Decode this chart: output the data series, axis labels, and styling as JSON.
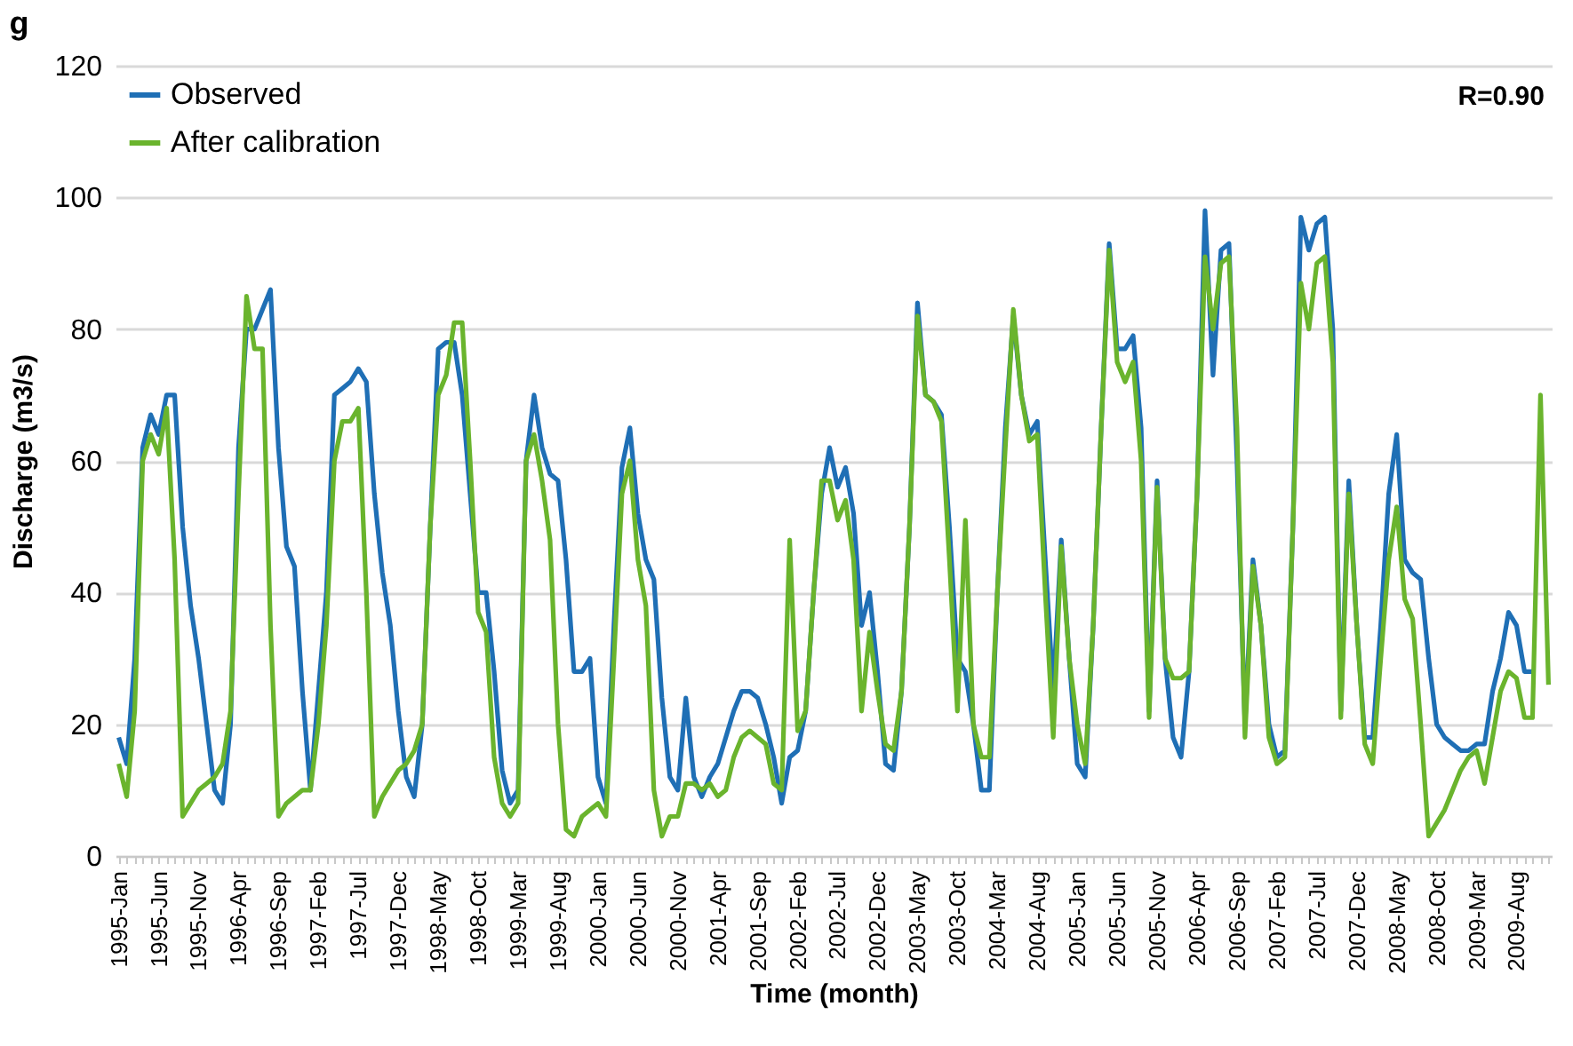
{
  "chart_data": {
    "type": "line",
    "title": "g",
    "xlabel": "Time (month)",
    "ylabel": "Discharge (m3/s)",
    "annotations": [
      "R=0.90"
    ],
    "categories": [
      "1995-Jan",
      null,
      null,
      null,
      null,
      "1995-Jun",
      null,
      null,
      null,
      null,
      "1995-Nov",
      null,
      null,
      null,
      null,
      "1996-Apr",
      null,
      null,
      null,
      null,
      "1996-Sep",
      null,
      null,
      null,
      null,
      "1997-Feb",
      null,
      null,
      null,
      null,
      "1997-Jul",
      null,
      null,
      null,
      null,
      "1997-Dec",
      null,
      null,
      null,
      null,
      "1998-May",
      null,
      null,
      null,
      null,
      "1998-Oct",
      null,
      null,
      null,
      null,
      "1999-Mar",
      null,
      null,
      null,
      null,
      "1999-Aug",
      null,
      null,
      null,
      null,
      "2000-Jan",
      null,
      null,
      null,
      null,
      "2000-Jun",
      null,
      null,
      null,
      null,
      "2000-Nov",
      null,
      null,
      null,
      null,
      "2001-Apr",
      null,
      null,
      null,
      null,
      "2001-Sep",
      null,
      null,
      null,
      null,
      "2002-Feb",
      null,
      null,
      null,
      null,
      "2002-Jul",
      null,
      null,
      null,
      null,
      "2002-Dec",
      null,
      null,
      null,
      null,
      "2003-May",
      null,
      null,
      null,
      null,
      "2003-Oct",
      null,
      null,
      null,
      null,
      "2004-Mar",
      null,
      null,
      null,
      null,
      "2004-Aug",
      null,
      null,
      null,
      null,
      "2005-Jan",
      null,
      null,
      null,
      null,
      "2005-Jun",
      null,
      null,
      null,
      null,
      "2005-Nov",
      null,
      null,
      null,
      null,
      "2006-Apr",
      null,
      null,
      null,
      null,
      "2006-Sep",
      null,
      null,
      null,
      null,
      "2007-Feb",
      null,
      null,
      null,
      null,
      "2007-Jul",
      null,
      null,
      null,
      null,
      "2007-Dec",
      null,
      null,
      null,
      null,
      "2008-May",
      null,
      null,
      null,
      null,
      "2008-Oct",
      null,
      null,
      null,
      null,
      "2009-Mar",
      null,
      null,
      null,
      null,
      "2009-Aug",
      null,
      null,
      null,
      null
    ],
    "series": [
      {
        "name": "Observed",
        "color": "#1f6fb5",
        "values": [
          18,
          14,
          30,
          62,
          67,
          64,
          70,
          70,
          50,
          38,
          30,
          20,
          10,
          8,
          20,
          62,
          80,
          80,
          83,
          86,
          62,
          47,
          44,
          25,
          10,
          25,
          40,
          70,
          71,
          72,
          74,
          72,
          55,
          43,
          35,
          22,
          12,
          9,
          20,
          50,
          77,
          78,
          78,
          70,
          55,
          40,
          40,
          28,
          13,
          8,
          10,
          60,
          70,
          62,
          58,
          57,
          45,
          28,
          28,
          30,
          12,
          8,
          35,
          59,
          65,
          52,
          45,
          42,
          24,
          12,
          10,
          24,
          12,
          9,
          12,
          14,
          18,
          22,
          25,
          25,
          24,
          20,
          15,
          8,
          15,
          16,
          22,
          40,
          55,
          62,
          56,
          59,
          52,
          35,
          40,
          28,
          14,
          13,
          25,
          50,
          84,
          70,
          69,
          67,
          50,
          30,
          28,
          20,
          10,
          10,
          40,
          65,
          82,
          70,
          64,
          66,
          45,
          25,
          48,
          30,
          14,
          12,
          35,
          65,
          93,
          77,
          77,
          79,
          65,
          22,
          57,
          30,
          18,
          15,
          28,
          55,
          98,
          73,
          92,
          93,
          60,
          20,
          45,
          35,
          20,
          15,
          16,
          50,
          97,
          92,
          96,
          97,
          80,
          22,
          57,
          35,
          18,
          18,
          35,
          55,
          64,
          45,
          43,
          42,
          30,
          20,
          18,
          17,
          16,
          16,
          17,
          17,
          25,
          30,
          37,
          35,
          28,
          28,
          null,
          null
        ]
      },
      {
        "name": "After calibration",
        "color": "#6ab42d",
        "values": [
          14,
          9,
          22,
          60,
          64,
          61,
          68,
          45,
          6,
          8,
          10,
          11,
          12,
          14,
          22,
          55,
          85,
          77,
          77,
          35,
          6,
          8,
          9,
          10,
          10,
          20,
          35,
          60,
          66,
          66,
          68,
          40,
          6,
          9,
          11,
          13,
          14,
          16,
          20,
          50,
          70,
          73,
          81,
          81,
          60,
          37,
          34,
          15,
          8,
          6,
          8,
          60,
          64,
          57,
          48,
          20,
          4,
          3,
          6,
          7,
          8,
          6,
          30,
          55,
          60,
          45,
          38,
          10,
          3,
          6,
          6,
          11,
          11,
          10,
          11,
          9,
          10,
          15,
          18,
          19,
          18,
          17,
          11,
          10,
          48,
          19,
          22,
          40,
          57,
          57,
          51,
          54,
          45,
          22,
          34,
          25,
          17,
          16,
          25,
          50,
          82,
          70,
          69,
          66,
          45,
          22,
          51,
          20,
          15,
          15,
          40,
          62,
          83,
          70,
          63,
          64,
          40,
          18,
          47,
          30,
          20,
          14,
          35,
          65,
          92,
          75,
          72,
          75,
          60,
          21,
          56,
          30,
          27,
          27,
          28,
          55,
          91,
          80,
          90,
          91,
          65,
          18,
          44,
          35,
          18,
          14,
          15,
          50,
          87,
          80,
          90,
          91,
          75,
          21,
          55,
          35,
          17,
          14,
          30,
          45,
          53,
          39,
          36,
          20,
          3,
          5,
          7,
          10,
          13,
          15,
          16,
          11,
          18,
          25,
          28,
          27,
          21,
          21,
          70,
          26
        ]
      }
    ],
    "ylim": [
      0,
      120
    ],
    "yticks": [
      0,
      20,
      40,
      60,
      80,
      100,
      120
    ],
    "grid": "y",
    "legend": "top left"
  }
}
